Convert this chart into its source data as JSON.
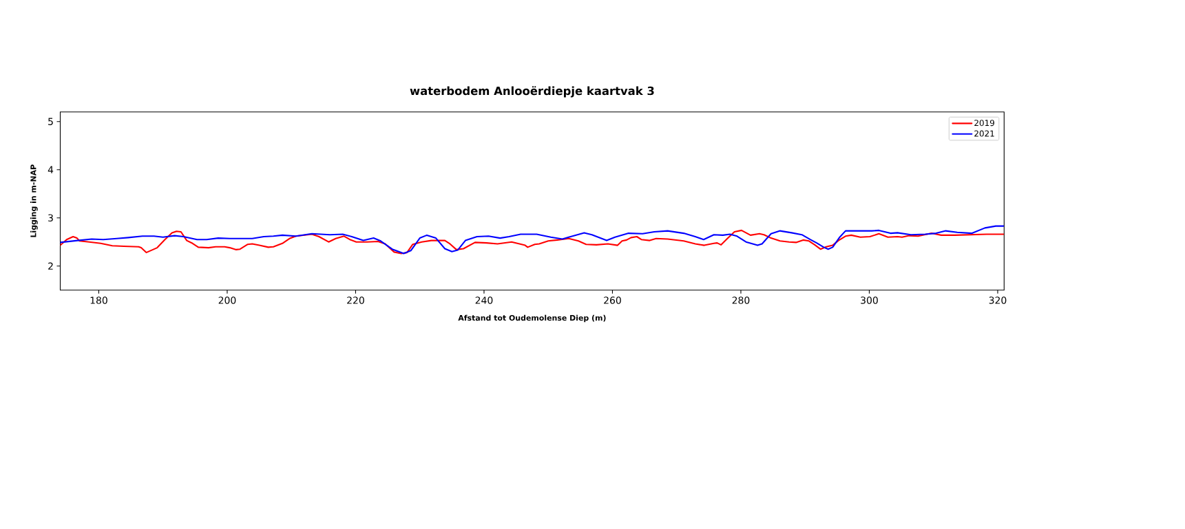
{
  "chart_data": {
    "type": "line",
    "title": "waterbodem Anlooërdiepje kaartvak 3",
    "xlabel": "Afstand tot Oudemolense Diep (m)",
    "ylabel": "Ligging in m-NAP",
    "xlim": [
      174,
      321
    ],
    "ylim": [
      1.5,
      5.2
    ],
    "xticks": [
      180,
      200,
      220,
      240,
      260,
      280,
      300,
      320
    ],
    "yticks": [
      2,
      3,
      4,
      5
    ],
    "legend": "top right",
    "line_style": "solid",
    "series": [
      {
        "name": "2019",
        "color": "#ff0000",
        "x": [
          174.0,
          175.0,
          176.0,
          176.6,
          177.0,
          178.5,
          180.3,
          182.1,
          183.9,
          186.2,
          186.6,
          187.4,
          189.1,
          190.3,
          191.4,
          192.1,
          192.8,
          193.7,
          194.6,
          195.5,
          197.1,
          198.2,
          199.6,
          200.4,
          201.4,
          202.0,
          203.2,
          203.9,
          205.0,
          206.4,
          207.2,
          208.6,
          209.7,
          210.7,
          213.2,
          214.3,
          215.8,
          216.9,
          218.2,
          219.1,
          220.1,
          221.8,
          223.5,
          224.6,
          226.0,
          227.1,
          228.0,
          228.9,
          230.3,
          231.8,
          233.9,
          234.6,
          235.7,
          236.8,
          238.6,
          240.4,
          242.1,
          244.3,
          246.4,
          246.8,
          247.9,
          248.6,
          250.0,
          251.4,
          253.2,
          254.7,
          255.9,
          257.5,
          259.3,
          260.8,
          261.5,
          262.2,
          262.9,
          263.8,
          264.5,
          265.8,
          266.8,
          268.6,
          271.1,
          272.9,
          274.3,
          275.8,
          276.3,
          276.9,
          277.9,
          279.0,
          280.1,
          281.5,
          282.9,
          283.6,
          284.7,
          286.1,
          287.5,
          288.6,
          289.7,
          290.6,
          291.5,
          292.4,
          293.3,
          294.3,
          295.2,
          296.3,
          297.2,
          298.6,
          300.1,
          301.5,
          302.9,
          304.4,
          305.1,
          306.2,
          307.6,
          309.7,
          311.2,
          313.3,
          315.8,
          318.3,
          320.9
        ],
        "values": [
          2.43,
          2.55,
          2.61,
          2.58,
          2.52,
          2.5,
          2.47,
          2.42,
          2.41,
          2.4,
          2.38,
          2.28,
          2.38,
          2.55,
          2.69,
          2.72,
          2.71,
          2.53,
          2.47,
          2.39,
          2.38,
          2.4,
          2.4,
          2.38,
          2.34,
          2.35,
          2.45,
          2.46,
          2.43,
          2.39,
          2.4,
          2.47,
          2.57,
          2.62,
          2.66,
          2.61,
          2.5,
          2.57,
          2.62,
          2.55,
          2.5,
          2.5,
          2.51,
          2.46,
          2.29,
          2.26,
          2.28,
          2.45,
          2.5,
          2.53,
          2.53,
          2.47,
          2.34,
          2.36,
          2.49,
          2.48,
          2.46,
          2.5,
          2.43,
          2.39,
          2.45,
          2.46,
          2.52,
          2.54,
          2.57,
          2.52,
          2.45,
          2.44,
          2.46,
          2.43,
          2.52,
          2.54,
          2.59,
          2.61,
          2.55,
          2.53,
          2.57,
          2.56,
          2.52,
          2.46,
          2.43,
          2.47,
          2.48,
          2.44,
          2.57,
          2.71,
          2.74,
          2.64,
          2.67,
          2.65,
          2.58,
          2.52,
          2.5,
          2.49,
          2.54,
          2.52,
          2.44,
          2.35,
          2.4,
          2.43,
          2.53,
          2.62,
          2.64,
          2.6,
          2.61,
          2.67,
          2.6,
          2.61,
          2.6,
          2.63,
          2.62,
          2.68,
          2.64,
          2.64,
          2.65,
          2.66,
          2.66
        ]
      },
      {
        "name": "2021",
        "color": "#0000ff",
        "x": [
          174.0,
          176.7,
          178.9,
          180.7,
          182.8,
          184.6,
          186.8,
          188.6,
          190.0,
          191.8,
          193.2,
          195.3,
          196.8,
          198.6,
          200.4,
          201.8,
          203.9,
          205.7,
          207.2,
          208.6,
          210.7,
          213.2,
          216.0,
          218.0,
          219.4,
          221.2,
          222.8,
          223.9,
          225.7,
          227.5,
          228.6,
          230.0,
          231.1,
          232.5,
          233.9,
          235.0,
          235.9,
          237.1,
          238.9,
          240.7,
          242.5,
          243.9,
          245.7,
          248.2,
          250.4,
          252.2,
          253.2,
          255.6,
          256.8,
          259.1,
          260.4,
          262.5,
          264.7,
          266.5,
          268.6,
          271.1,
          272.9,
          274.2,
          275.8,
          277.2,
          278.3,
          279.4,
          280.8,
          282.6,
          283.3,
          284.7,
          286.1,
          287.9,
          289.5,
          290.8,
          291.8,
          292.9,
          293.6,
          294.3,
          295.4,
          296.3,
          298.6,
          300.4,
          301.5,
          303.3,
          304.4,
          306.5,
          308.7,
          310.4,
          311.9,
          313.7,
          316.0,
          318.0,
          319.7,
          320.9
        ],
        "values": [
          2.49,
          2.53,
          2.56,
          2.55,
          2.57,
          2.59,
          2.62,
          2.62,
          2.6,
          2.63,
          2.61,
          2.55,
          2.55,
          2.58,
          2.57,
          2.57,
          2.57,
          2.61,
          2.62,
          2.64,
          2.62,
          2.67,
          2.65,
          2.66,
          2.61,
          2.53,
          2.58,
          2.52,
          2.35,
          2.26,
          2.32,
          2.58,
          2.64,
          2.58,
          2.36,
          2.3,
          2.33,
          2.53,
          2.61,
          2.62,
          2.58,
          2.61,
          2.66,
          2.66,
          2.6,
          2.56,
          2.6,
          2.69,
          2.65,
          2.53,
          2.6,
          2.68,
          2.67,
          2.71,
          2.73,
          2.68,
          2.61,
          2.55,
          2.65,
          2.64,
          2.66,
          2.62,
          2.5,
          2.43,
          2.46,
          2.67,
          2.73,
          2.69,
          2.65,
          2.55,
          2.48,
          2.39,
          2.35,
          2.39,
          2.6,
          2.73,
          2.73,
          2.73,
          2.74,
          2.68,
          2.69,
          2.65,
          2.66,
          2.68,
          2.73,
          2.7,
          2.68,
          2.79,
          2.83,
          2.83
        ]
      }
    ]
  }
}
